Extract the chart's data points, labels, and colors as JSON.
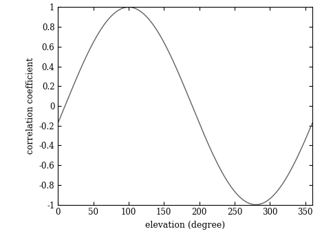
{
  "title": "",
  "xlabel": "elevation (degree)",
  "ylabel": "correlation coefficient",
  "xlim": [
    0,
    360
  ],
  "ylim": [
    -1,
    1
  ],
  "xticks": [
    0,
    50,
    100,
    150,
    200,
    250,
    300,
    350
  ],
  "yticks": [
    -1,
    -0.8,
    -0.6,
    -0.4,
    -0.2,
    0,
    0.2,
    0.4,
    0.6,
    0.8,
    1
  ],
  "ytick_labels": [
    "-1",
    "-0.8",
    "-0.6",
    "-0.4",
    "-0.2",
    "0",
    "0.2",
    "0.4",
    "0.6",
    "0.8",
    "1"
  ],
  "line_color": "#606060",
  "line_width": 1.0,
  "phase_shift_deg": 100,
  "background_color": "#ffffff",
  "figsize": [
    4.68,
    3.46
  ],
  "dpi": 100,
  "spine_color": "#000000",
  "spine_linewidth": 0.8,
  "tick_fontsize": 8.5,
  "label_fontsize": 9.0
}
